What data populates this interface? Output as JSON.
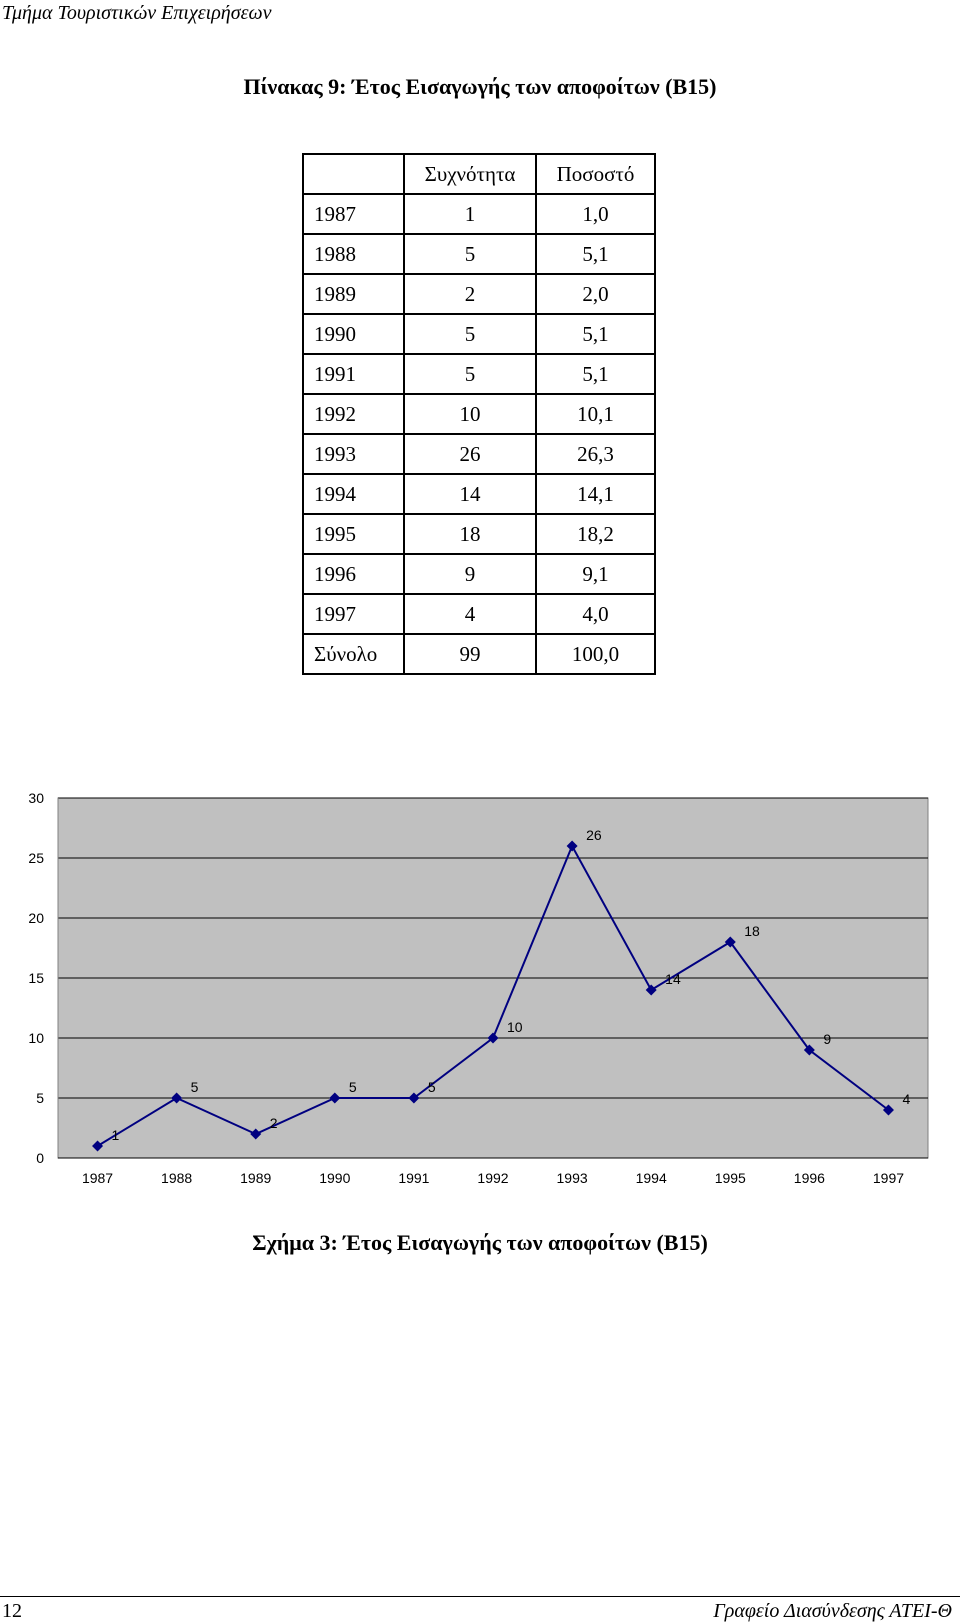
{
  "header": {
    "left_text": "Τμήμα Τουριστικών Επιχειρήσεων"
  },
  "table": {
    "title": "Πίνακας 9:  Έτος Εισαγωγής των αποφοίτων (Β15)",
    "headers": [
      "",
      "Συχνότητα",
      "Ποσοστό"
    ],
    "rows": [
      [
        "1987",
        "1",
        "1,0"
      ],
      [
        "1988",
        "5",
        "5,1"
      ],
      [
        "1989",
        "2",
        "2,0"
      ],
      [
        "1990",
        "5",
        "5,1"
      ],
      [
        "1991",
        "5",
        "5,1"
      ],
      [
        "1992",
        "10",
        "10,1"
      ],
      [
        "1993",
        "26",
        "26,3"
      ],
      [
        "1994",
        "14",
        "14,1"
      ],
      [
        "1995",
        "18",
        "18,2"
      ],
      [
        "1996",
        "9",
        "9,1"
      ],
      [
        "1997",
        "4",
        "4,0"
      ],
      [
        "Σύνολο",
        "99",
        "100,0"
      ]
    ]
  },
  "chart_data": {
    "type": "line",
    "categories": [
      "1987",
      "1988",
      "1989",
      "1990",
      "1991",
      "1992",
      "1993",
      "1994",
      "1995",
      "1996",
      "1997"
    ],
    "series": [
      {
        "values": [
          1,
          5,
          2,
          5,
          5,
          10,
          26,
          14,
          18,
          9,
          4
        ]
      }
    ],
    "data_labels": true,
    "ylim": [
      0,
      30
    ],
    "yticks": [
      0,
      5,
      10,
      15,
      20,
      25,
      30
    ],
    "grid": true,
    "plot_background": "#c0c0c0",
    "line_color": "#000080",
    "marker": "diamond",
    "legend": "none"
  },
  "figure": {
    "caption": "Σχήμα 3: Έτος Εισαγωγής των αποφοίτων (Β15)"
  },
  "footer": {
    "page_number": "12",
    "right_text": "Γραφείο Διασύνδεσης ΑΤΕΙ-Θ"
  }
}
